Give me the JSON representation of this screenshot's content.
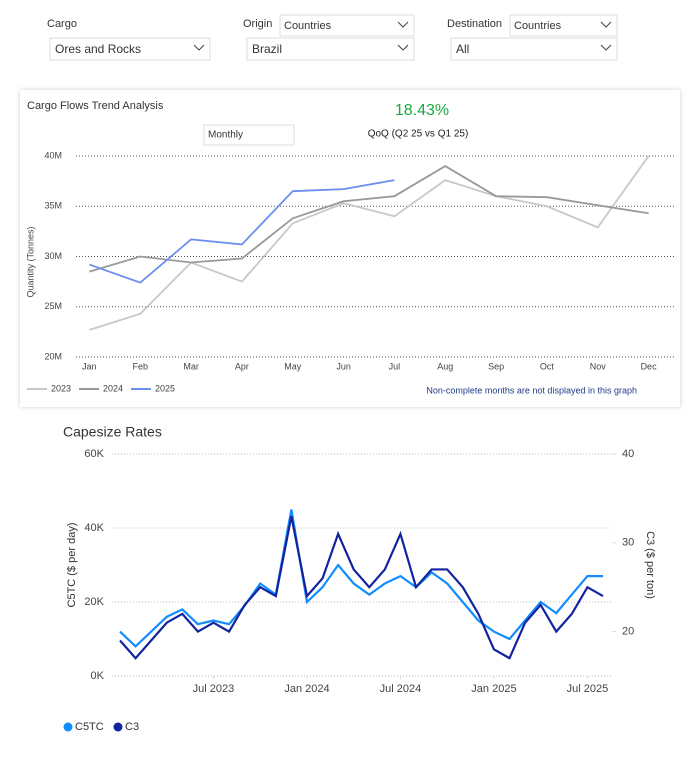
{
  "filters": {
    "cargo": {
      "label": "Cargo",
      "value": "Ores and Rocks"
    },
    "origin": {
      "label": "Origin",
      "level": "Countries",
      "value": "Brazil"
    },
    "destination": {
      "label": "Destination",
      "level": "Countries",
      "value": "All"
    }
  },
  "chart_data": [
    {
      "type": "line",
      "title": "Cargo Flows Trend Analysis",
      "kpi": "18.43%",
      "kpi_label": "QoQ (Q2 25 vs Q1 25)",
      "period": "Monthly",
      "y_label": "Quantity (Tonnes)",
      "note": "Non-complete months are not displayed in this graph",
      "categories": [
        "Jan",
        "Feb",
        "Mar",
        "Apr",
        "May",
        "Jun",
        "Jul",
        "Aug",
        "Sep",
        "Oct",
        "Nov",
        "Dec"
      ],
      "series": [
        {
          "name": "2023",
          "color": "#c8c8c8",
          "values": [
            22700000,
            24300000,
            29400000,
            27500000,
            33300000,
            35300000,
            34000000,
            37600000,
            36000000,
            35000000,
            32900000,
            40000000
          ]
        },
        {
          "name": "2024",
          "color": "#999999",
          "values": [
            28500000,
            30000000,
            29400000,
            29800000,
            33800000,
            35500000,
            36000000,
            39000000,
            36000000,
            35900000,
            35100000,
            34300000
          ]
        },
        {
          "name": "2025",
          "color": "#6b8ff0",
          "values": [
            29200000,
            27400000,
            31700000,
            31200000,
            36500000,
            36700000,
            37600000,
            null,
            null,
            null,
            null,
            null
          ]
        }
      ],
      "ylim": [
        20000000,
        40000000
      ],
      "yticks": [
        {
          "value": 20000000,
          "label": "20M"
        },
        {
          "value": 25000000,
          "label": "25M"
        },
        {
          "value": 30000000,
          "label": "30M"
        },
        {
          "value": 35000000,
          "label": "35M"
        },
        {
          "value": 40000000,
          "label": "40M"
        }
      ],
      "grid": true,
      "legend": "bottom-left"
    },
    {
      "type": "line",
      "title": "Capesize Rates",
      "y_label": "C5TC ($ per day)",
      "y2_label": "C3 ($ per ton)",
      "x": [
        "2023-01",
        "2023-02",
        "2023-03",
        "2023-04",
        "2023-05",
        "2023-06",
        "2023-07",
        "2023-08",
        "2023-09",
        "2023-10",
        "2023-11",
        "2023-12",
        "2024-01",
        "2024-02",
        "2024-03",
        "2024-04",
        "2024-05",
        "2024-06",
        "2024-07",
        "2024-08",
        "2024-09",
        "2024-10",
        "2024-11",
        "2024-12",
        "2025-01",
        "2025-02",
        "2025-03",
        "2025-04",
        "2025-05",
        "2025-06",
        "2025-07",
        "2025-08"
      ],
      "series": [
        {
          "name": "C5TC",
          "color": "#118dff",
          "values": [
            12000,
            8000,
            12000,
            16000,
            18000,
            14000,
            15000,
            14000,
            19000,
            25000,
            22000,
            45000,
            20000,
            24000,
            30000,
            25000,
            22000,
            25000,
            27000,
            24000,
            28000,
            25000,
            20000,
            15000,
            12000,
            10000,
            15000,
            20000,
            17000,
            22000,
            27000,
            27000
          ]
        },
        {
          "name": "C3",
          "color": "#12239e",
          "axis": "y2",
          "values": [
            19,
            17,
            19,
            21,
            22,
            20,
            21,
            20,
            23,
            25,
            24,
            33,
            24,
            26,
            31,
            27,
            25,
            27,
            31,
            25,
            27,
            27,
            25,
            22,
            18,
            17,
            21,
            23,
            20,
            22,
            25,
            24
          ]
        }
      ],
      "xlim": [
        "2023-01",
        "2025-08"
      ],
      "xticks": [
        {
          "value": "2023-07",
          "label": "Jul 2023"
        },
        {
          "value": "2024-01",
          "label": "Jan 2024"
        },
        {
          "value": "2024-07",
          "label": "Jul 2024"
        },
        {
          "value": "2025-01",
          "label": "Jan 2025"
        },
        {
          "value": "2025-07",
          "label": "Jul 2025"
        }
      ],
      "ylim": [
        0,
        60000
      ],
      "yticks": [
        {
          "value": 0,
          "label": "0K"
        },
        {
          "value": 20000,
          "label": "20K"
        },
        {
          "value": 40000,
          "label": "40K"
        },
        {
          "value": 60000,
          "label": "60K"
        }
      ],
      "y2lim": [
        15,
        40
      ],
      "y2ticks": [
        20,
        30,
        40
      ],
      "grid": true,
      "legend": "bottom-left"
    }
  ]
}
